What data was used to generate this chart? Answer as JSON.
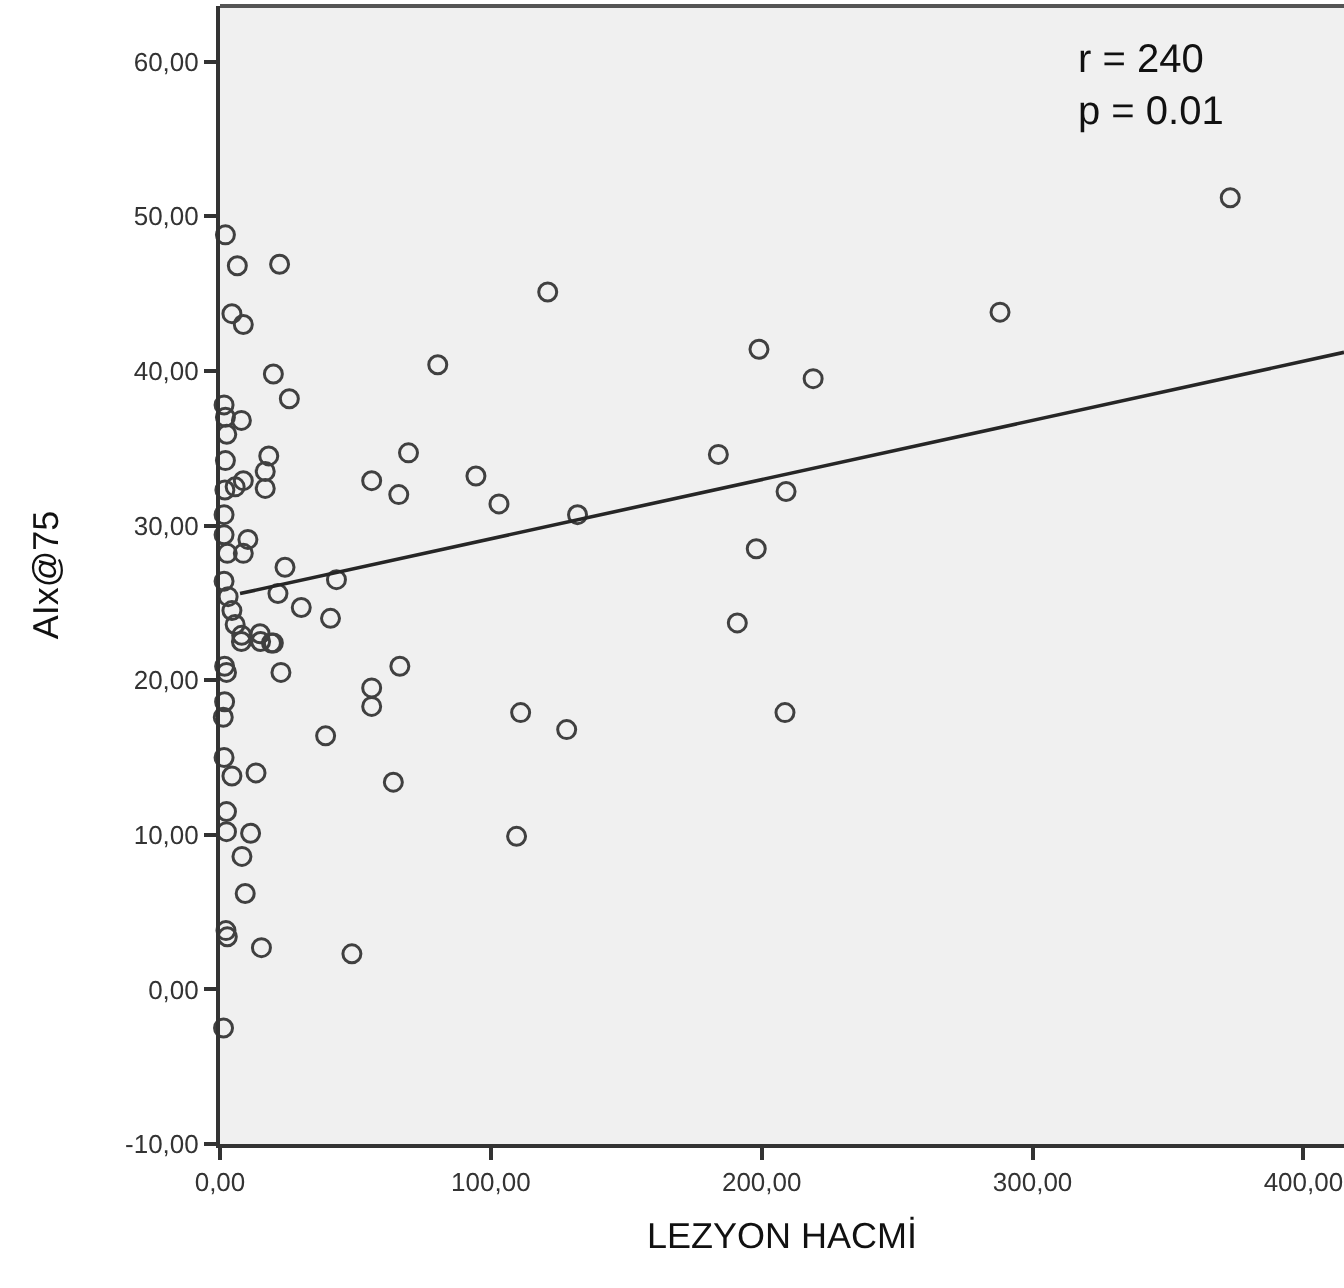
{
  "chart_data": {
    "type": "scatter",
    "xlabel": "LEZYON HACMİ",
    "ylabel": "AIx@75",
    "annotations": [
      "r = 240",
      "p = 0.01"
    ],
    "xlim": [
      0,
      415
    ],
    "ylim": [
      -10,
      63.6
    ],
    "xticks": [
      {
        "value": 0,
        "label": "0,00"
      },
      {
        "value": 100,
        "label": "100,00"
      },
      {
        "value": 200,
        "label": "200,00"
      },
      {
        "value": 300,
        "label": "300,00"
      },
      {
        "value": 400,
        "label": "400,00"
      }
    ],
    "yticks": [
      {
        "value": -10,
        "label": "-10,00"
      },
      {
        "value": 0,
        "label": "0,00"
      },
      {
        "value": 10,
        "label": "10,00"
      },
      {
        "value": 20,
        "label": "20,00"
      },
      {
        "value": 30,
        "label": "30,00"
      },
      {
        "value": 40,
        "label": "40,00"
      },
      {
        "value": 50,
        "label": "50,00"
      },
      {
        "value": 60,
        "label": "60,00"
      }
    ],
    "series": [
      {
        "marker": "circle",
        "color": "#404040",
        "x": [
          2,
          6.4,
          22,
          4.4,
          8.6,
          121,
          80.4,
          19.7,
          25.6,
          1.5,
          2,
          2.5,
          2,
          1.8,
          1.5,
          1.5,
          7.9,
          8.6,
          5.6,
          18,
          16.7,
          16.7,
          56,
          66,
          69.6,
          94.5,
          103,
          132,
          10.3,
          8.6,
          2.7,
          24,
          21.4,
          30,
          43,
          40.8,
          1.5,
          3,
          4.4,
          5.6,
          8,
          14.8,
          19,
          7.9,
          15,
          19.7,
          1.7,
          2.4,
          22.5,
          56,
          66.4,
          56,
          1.7,
          1.2,
          39,
          111,
          128,
          1.5,
          4.4,
          13.3,
          64,
          2.4,
          2.4,
          11.3,
          109.5,
          8.1,
          9.3,
          2.2,
          2.7,
          15.3,
          48.7,
          1.3,
          373,
          288,
          199,
          219,
          184,
          209,
          198,
          191,
          208.6
        ],
        "values": [
          48.8,
          46.8,
          46.9,
          43.7,
          43,
          45.1,
          40.4,
          39.8,
          38.2,
          37.8,
          37,
          35.9,
          34.2,
          32.3,
          30.7,
          29.4,
          36.8,
          32.9,
          32.5,
          34.5,
          33.5,
          32.4,
          32.9,
          32,
          34.7,
          33.2,
          31.4,
          30.7,
          29.1,
          28.2,
          28.2,
          27.3,
          25.6,
          24.7,
          26.5,
          24,
          26.4,
          25.4,
          24.5,
          23.6,
          22.9,
          23,
          22.4,
          22.5,
          22.5,
          22.4,
          20.9,
          20.5,
          20.5,
          19.5,
          20.9,
          18.3,
          18.6,
          17.6,
          16.4,
          17.9,
          16.8,
          15,
          13.8,
          14,
          13.4,
          11.5,
          10.2,
          10.1,
          9.9,
          8.6,
          6.2,
          3.8,
          3.4,
          2.7,
          2.3,
          -2.5,
          51.2,
          43.8,
          41.4,
          39.5,
          34.6,
          32.2,
          28.5,
          23.7,
          17.9
        ]
      },
      {
        "type": "line",
        "marker": "none",
        "color": "#262626",
        "x": [
          7.4,
          415
        ],
        "values": [
          25.6,
          41.2
        ]
      }
    ]
  }
}
